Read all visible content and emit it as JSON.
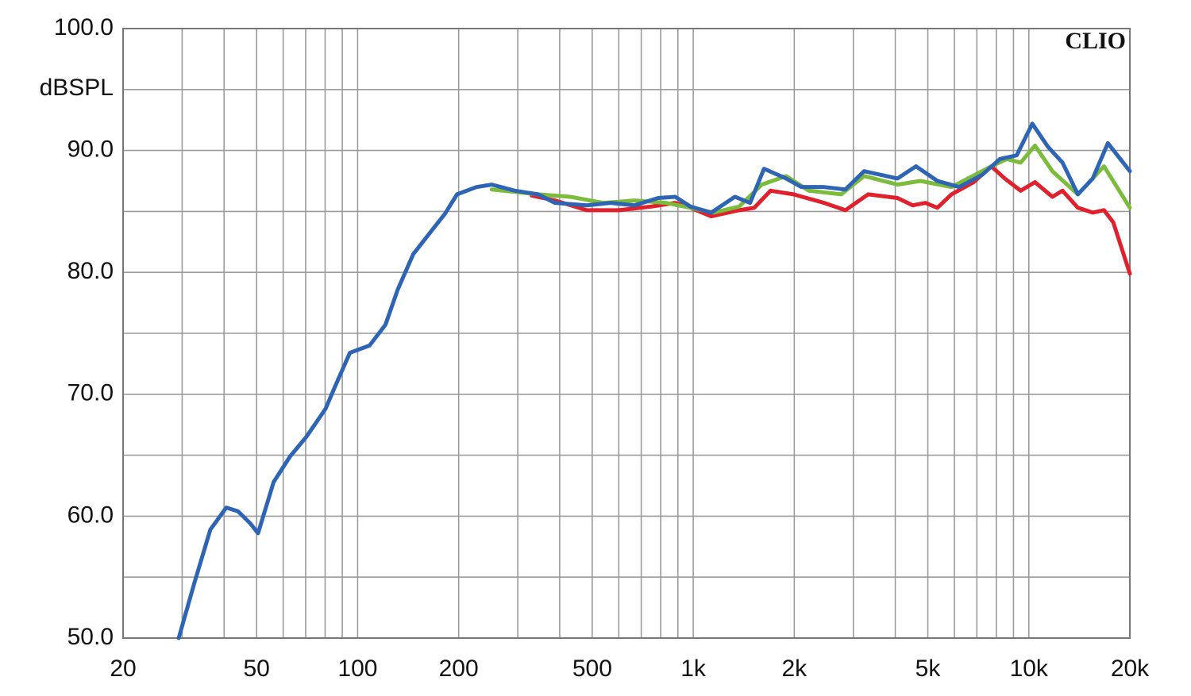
{
  "chart_data": {
    "type": "line",
    "annotation": "CLIO",
    "ylabel": "dBSPL",
    "xscale": "log",
    "grid": true,
    "xlim": [
      20,
      20000
    ],
    "xticks": [
      20,
      50,
      100,
      200,
      500,
      {
        "value": 1000,
        "label": "1k"
      },
      {
        "value": 2000,
        "label": "2k"
      },
      {
        "value": 5000,
        "label": "5k"
      },
      {
        "value": 10000,
        "label": "10k"
      },
      {
        "value": 20000,
        "label": "20k"
      }
    ],
    "xminorticks": [
      30,
      40,
      60,
      70,
      80,
      90,
      300,
      400,
      600,
      700,
      800,
      900,
      3000,
      4000,
      6000,
      7000,
      8000,
      9000
    ],
    "ylim": [
      50,
      100
    ],
    "yticks": [
      {
        "value": 50,
        "label": "50.0"
      },
      {
        "value": 60,
        "label": "60.0"
      },
      {
        "value": 70,
        "label": "70.0"
      },
      {
        "value": 80,
        "label": "80.0"
      },
      {
        "value": 90,
        "label": "90.0"
      },
      {
        "value": 100,
        "label": "100.0"
      }
    ],
    "yminorticks": [
      55,
      65,
      75,
      85,
      95
    ],
    "series": [
      {
        "color": "#2e64b4",
        "x": [
          29.3,
          32.6,
          36.4,
          40.6,
          44,
          47.9,
          50.5,
          56.2,
          62.9,
          70.3,
          80.2,
          87.1,
          94.8,
          108.5,
          121,
          131.7,
          146.5,
          167,
          182,
          197.7,
          226,
          251,
          294,
          345,
          387,
          482,
          567,
          668,
          786,
          884,
          981,
          1131,
          1331,
          1477,
          1625,
          1892,
          2100,
          2454,
          2840,
          3230,
          4060,
          4610,
          5340,
          6200,
          7260,
          8200,
          9200,
          10240,
          11400,
          12600,
          14000,
          15500,
          17200,
          20000
        ],
        "values": [
          50,
          54.5,
          58.9,
          60.7,
          60.4,
          59.4,
          58.6,
          62.8,
          64.9,
          66.5,
          68.8,
          71.1,
          73.4,
          74,
          75.7,
          78.6,
          81.5,
          83.5,
          84.8,
          86.4,
          87,
          87.2,
          86.7,
          86.4,
          85.7,
          85.5,
          85.7,
          85.5,
          86.1,
          86.2,
          85.4,
          84.9,
          86.2,
          85.7,
          88.5,
          87.7,
          87,
          87,
          86.8,
          88.3,
          87.7,
          88.7,
          87.5,
          87,
          88,
          89.3,
          89.6,
          92.2,
          90.3,
          89,
          86.4,
          87.7,
          90.6,
          88.3
        ]
      },
      {
        "color": "#7cbc3c",
        "x": [
          251,
          345,
          430,
          540,
          668,
          830,
          981,
          1150,
          1370,
          1600,
          1892,
          2210,
          2760,
          3230,
          4060,
          4750,
          5880,
          7730,
          8600,
          9450,
          10430,
          11750,
          14000,
          16750,
          20000
        ],
        "values": [
          86.8,
          86.4,
          86.2,
          85.7,
          85.9,
          85.7,
          85.3,
          84.9,
          85.4,
          87.2,
          87.9,
          86.7,
          86.4,
          87.9,
          87.2,
          87.5,
          87,
          88.7,
          89.3,
          89,
          90.4,
          88.3,
          86.4,
          88.7,
          85.3
        ]
      },
      {
        "color": "#e0202c",
        "x": [
          330,
          387,
          482,
          600,
          750,
          884,
          981,
          1131,
          1370,
          1520,
          1700,
          1990,
          2454,
          2840,
          3320,
          4060,
          4510,
          4920,
          5340,
          5880,
          6850,
          7730,
          8480,
          9450,
          10430,
          11750,
          12600,
          14000,
          15500,
          16750,
          17850,
          20000
        ],
        "values": [
          86.3,
          85.9,
          85.1,
          85.1,
          85.4,
          85.7,
          85.3,
          84.6,
          85.1,
          85.3,
          86.7,
          86.4,
          85.7,
          85.1,
          86.4,
          86.1,
          85.5,
          85.7,
          85.3,
          86.4,
          87.4,
          88.7,
          87.7,
          86.7,
          87.4,
          86.2,
          86.7,
          85.3,
          84.9,
          85.1,
          84.1,
          79.9
        ]
      }
    ]
  }
}
